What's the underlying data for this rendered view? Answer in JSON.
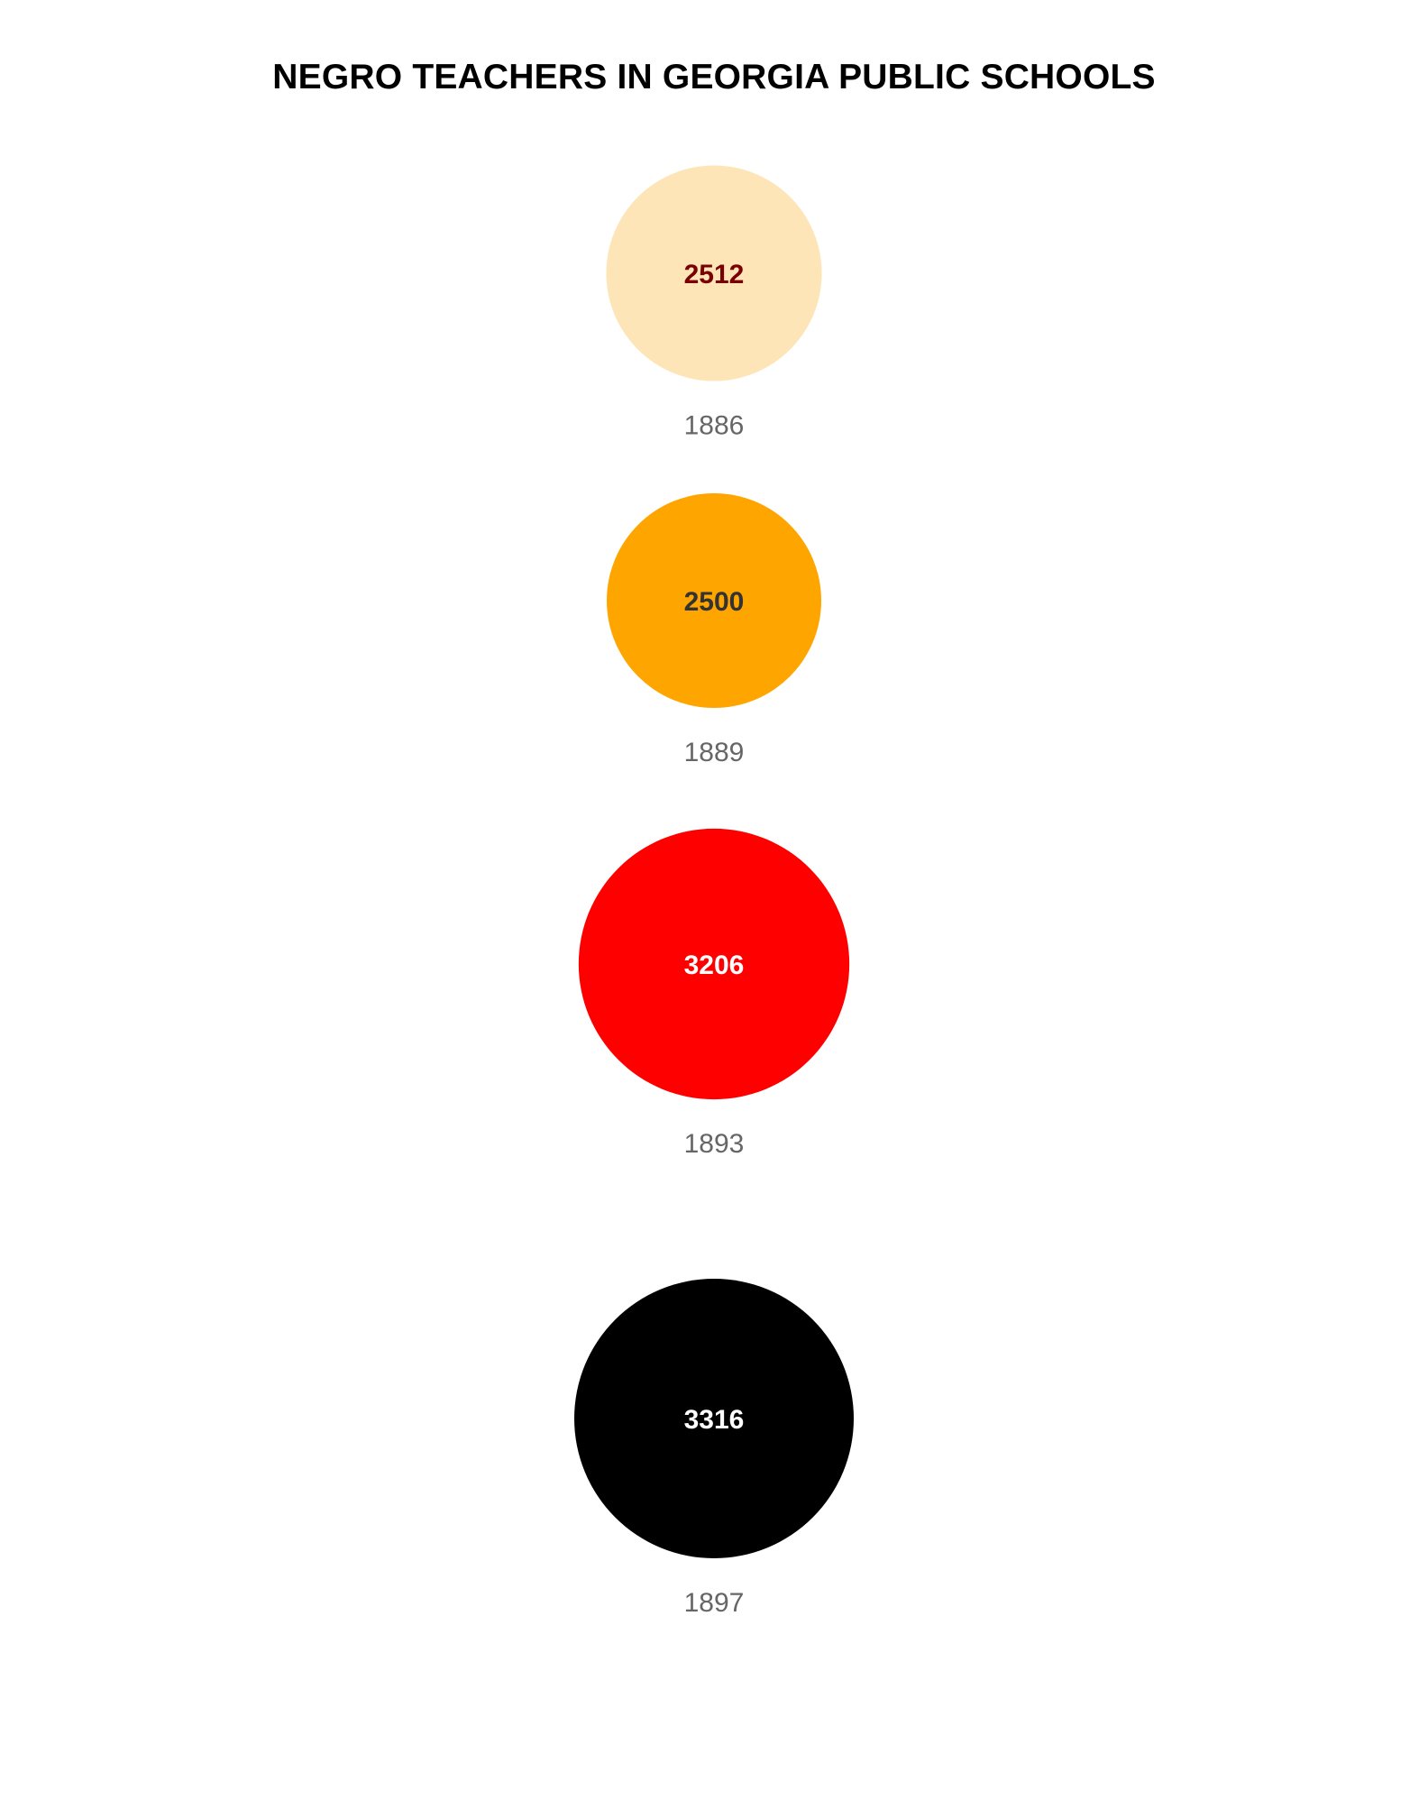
{
  "chart_data": {
    "type": "bubble",
    "title": "NEGRO TEACHERS IN GEORGIA PUBLIC SCHOOLS",
    "points": [
      {
        "year": "1886",
        "value": 2512,
        "color": "#FDE5B8",
        "label_color": "#7A0000"
      },
      {
        "year": "1889",
        "value": 2500,
        "color": "#FFA500",
        "label_color": "#333333"
      },
      {
        "year": "1893",
        "value": 3206,
        "color": "#FF0000",
        "label_color": "#FFFFFF"
      },
      {
        "year": "1897",
        "value": 3316,
        "color": "#000000",
        "label_color": "#FFFFFF"
      }
    ],
    "xlabel": "",
    "ylabel": "",
    "grid": false,
    "legend": "none"
  }
}
